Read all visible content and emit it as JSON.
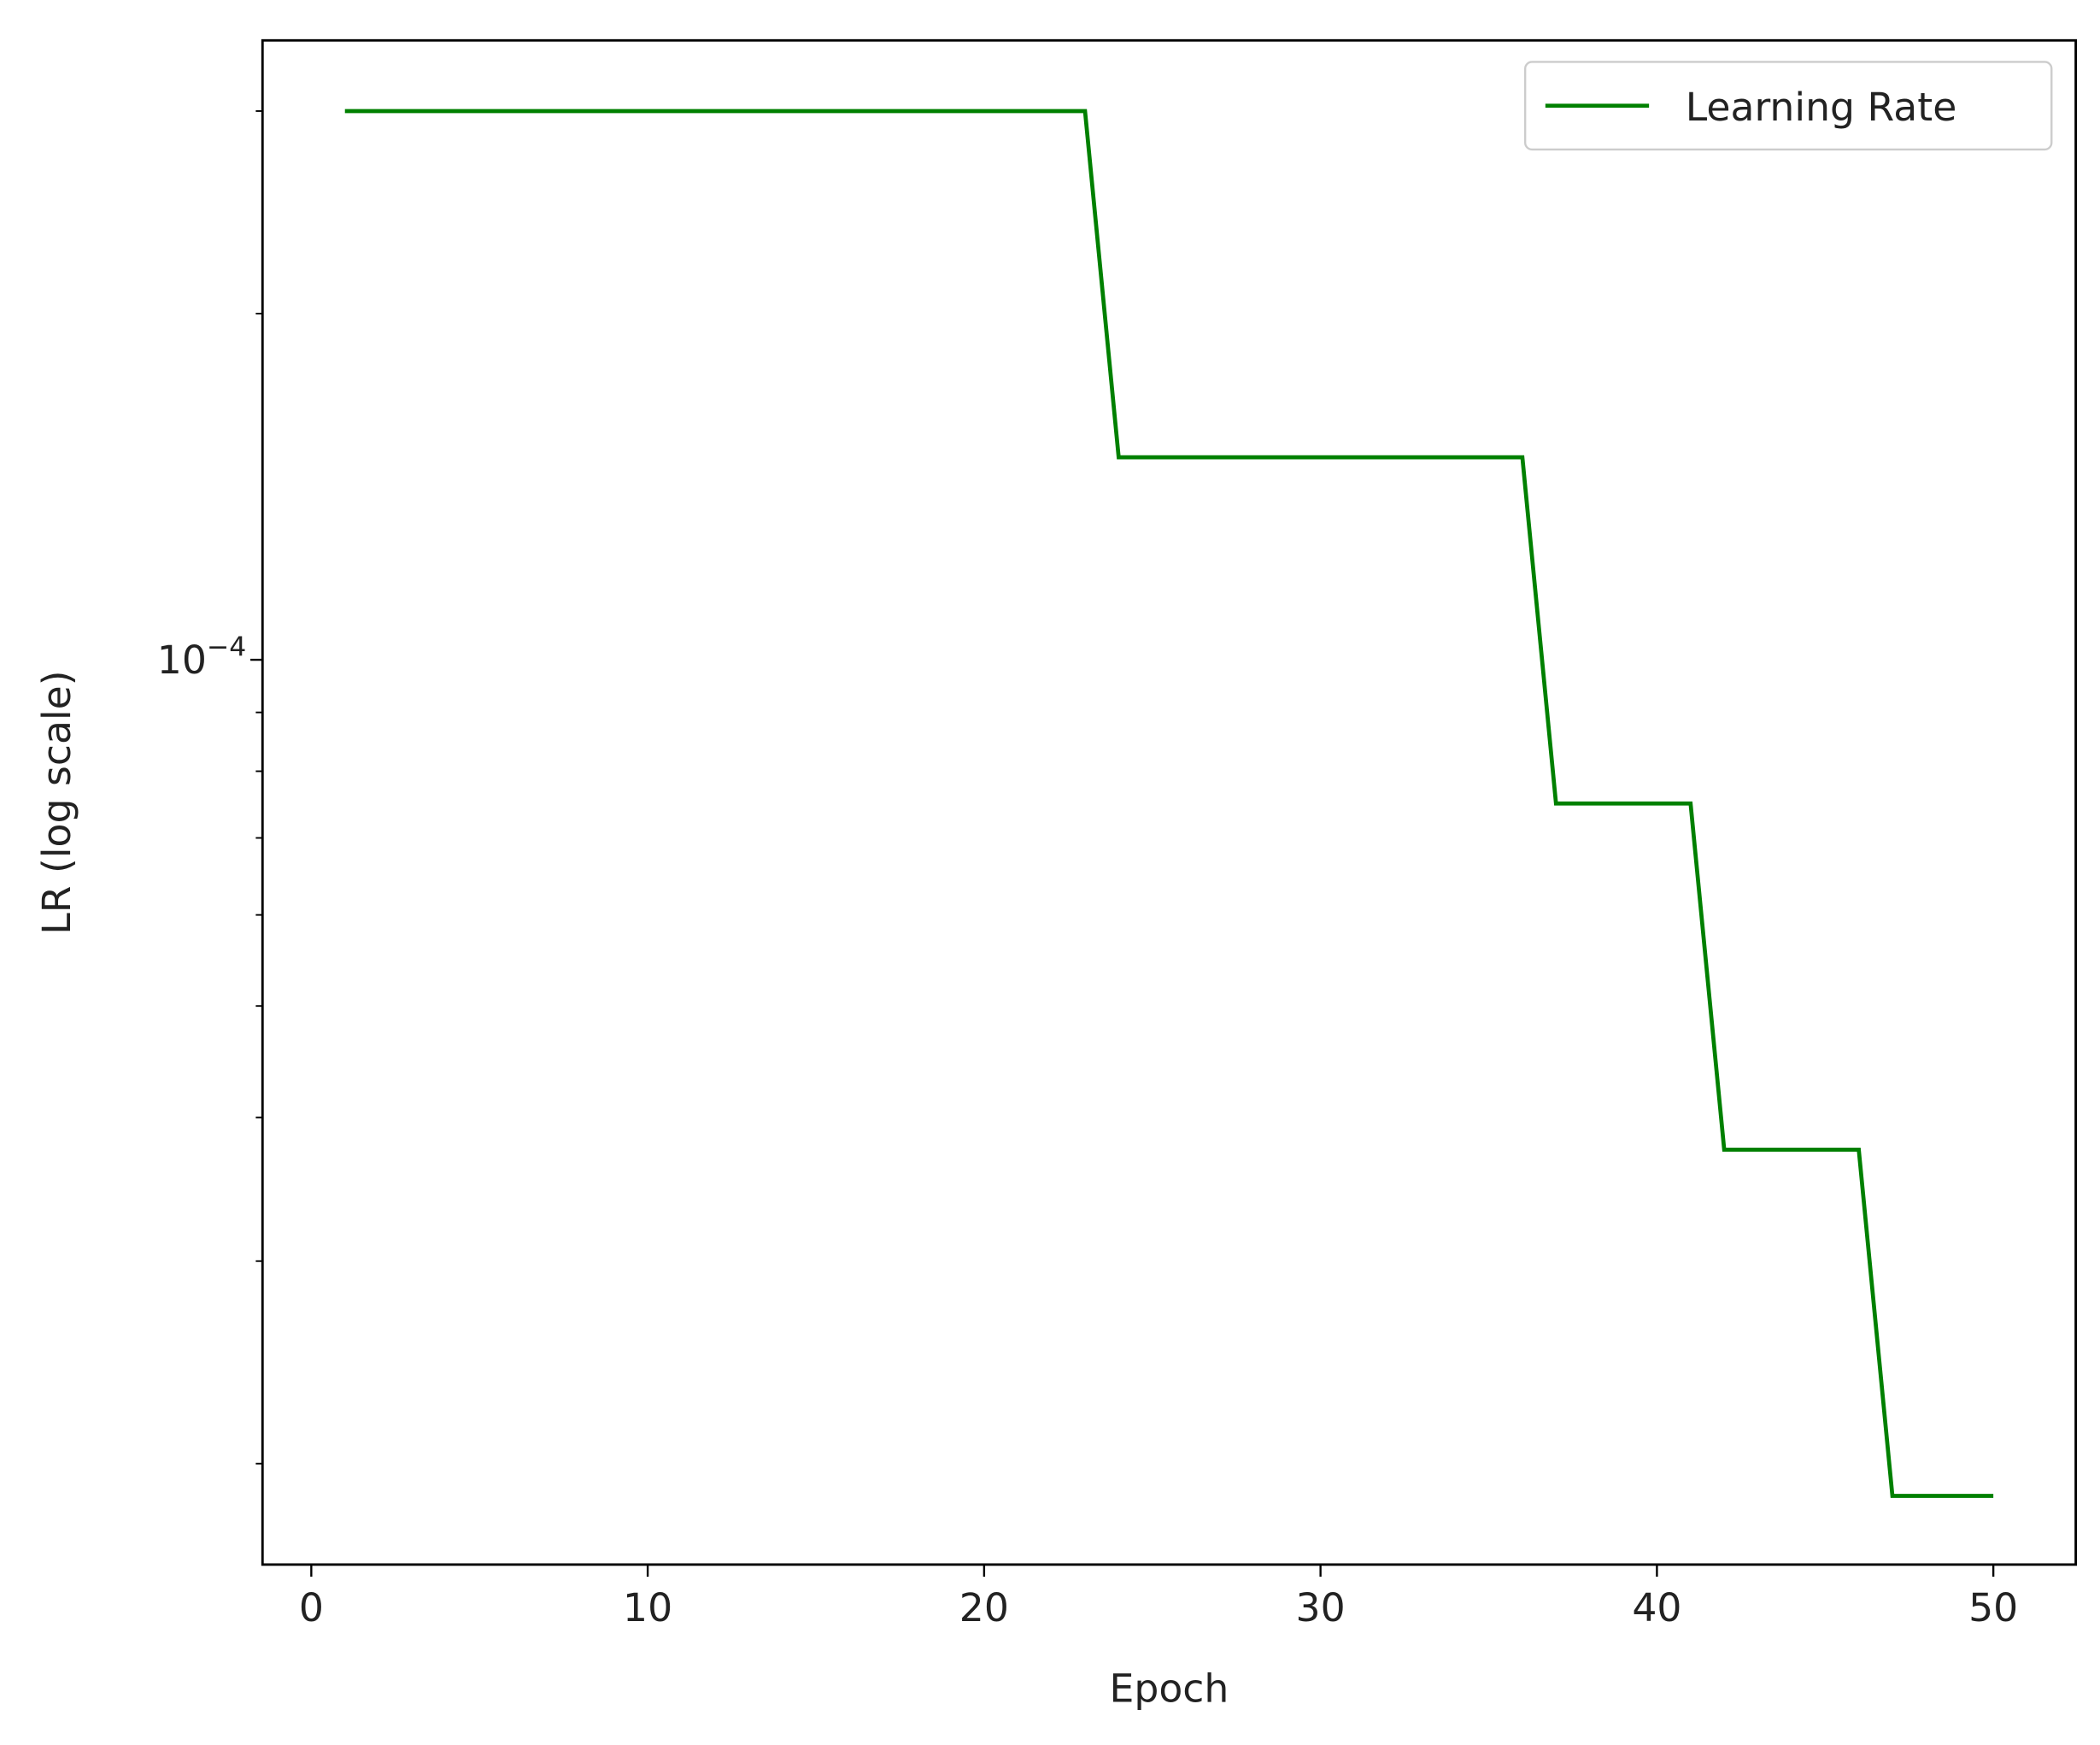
{
  "chart_data": {
    "type": "line",
    "xlabel": "Epoch",
    "ylabel": "LR (log scale)",
    "x": [
      1,
      2,
      3,
      4,
      5,
      6,
      7,
      8,
      9,
      10,
      11,
      12,
      13,
      14,
      15,
      16,
      17,
      18,
      19,
      20,
      21,
      22,
      23,
      24,
      25,
      26,
      27,
      28,
      29,
      30,
      31,
      32,
      33,
      34,
      35,
      36,
      37,
      38,
      39,
      40,
      41,
      42,
      43,
      44,
      45,
      46,
      47,
      48,
      49,
      50
    ],
    "series": [
      {
        "name": "Learning Rate",
        "color": "#008000",
        "values": [
          0.0003,
          0.0003,
          0.0003,
          0.0003,
          0.0003,
          0.0003,
          0.0003,
          0.0003,
          0.0003,
          0.0003,
          0.0003,
          0.0003,
          0.0003,
          0.0003,
          0.0003,
          0.0003,
          0.0003,
          0.0003,
          0.0003,
          0.0003,
          0.0003,
          0.0003,
          0.0003,
          0.00015,
          0.00015,
          0.00015,
          0.00015,
          0.00015,
          0.00015,
          0.00015,
          0.00015,
          0.00015,
          0.00015,
          0.00015,
          0.00015,
          0.00015,
          7.5e-05,
          7.5e-05,
          7.5e-05,
          7.5e-05,
          7.5e-05,
          3.75e-05,
          3.75e-05,
          3.75e-05,
          3.75e-05,
          3.75e-05,
          1.875e-05,
          1.875e-05,
          1.875e-05,
          1.875e-05
        ]
      }
    ],
    "xlim": [
      -1.45,
      52.45
    ],
    "xticks": [
      0,
      10,
      20,
      30,
      40,
      50
    ],
    "ylim": [
      1.634e-05,
      0.0003456
    ],
    "yscale": "log",
    "yticks": [
      {
        "value": 0.0001,
        "label": "10",
        "exponent": "−4"
      }
    ],
    "yminorticks": [
      2e-05,
      3e-05,
      4e-05,
      5e-05,
      6e-05,
      7e-05,
      8e-05,
      9e-05,
      0.0002,
      0.0003
    ],
    "legend": "upper right",
    "grid": false
  }
}
